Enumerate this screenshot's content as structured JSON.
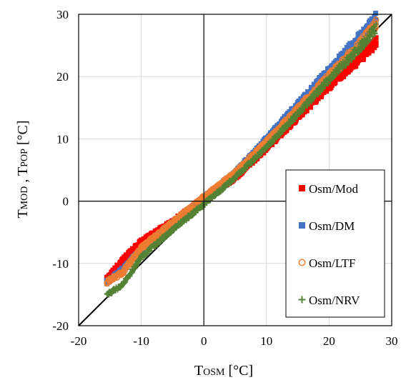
{
  "chart_data": {
    "type": "scatter",
    "title": "",
    "xlabel": {
      "main": "T",
      "sub": "OSM",
      "unit": " [°C]"
    },
    "ylabel": {
      "main1": "T",
      "sub1": "MOD",
      "sep": " ,  ",
      "main2": "T",
      "sub2": "POP",
      "unit": "   [°C]"
    },
    "xlim": [
      -20,
      30
    ],
    "ylim": [
      -20,
      30
    ],
    "xticks": [
      -20,
      -10,
      0,
      10,
      20,
      30
    ],
    "yticks": [
      -20,
      -10,
      0,
      10,
      20,
      30
    ],
    "xtick_labels": [
      "-20",
      "-10",
      "0",
      "10",
      "20",
      "30"
    ],
    "ytick_labels": [
      "-20",
      "-10",
      "0",
      "10",
      "20",
      "30"
    ],
    "grid": true,
    "reference_line": {
      "label": "",
      "from": [
        -20,
        -20
      ],
      "to": [
        30,
        30
      ]
    },
    "legend_position": "bottom-right",
    "series": [
      {
        "name": "Osm/Mod",
        "marker": "square",
        "color": "#ff0000",
        "trend": [
          [
            -15.5,
            -12.5
          ],
          [
            -13,
            -9.5
          ],
          [
            -10,
            -6.5
          ],
          [
            -5,
            -3.3
          ],
          [
            0,
            0.3
          ],
          [
            5,
            3.8
          ],
          [
            10,
            8.5
          ],
          [
            15,
            13.5
          ],
          [
            20,
            18.5
          ],
          [
            25,
            23.0
          ],
          [
            27.5,
            25.5
          ]
        ]
      },
      {
        "name": "Osm/DM",
        "marker": "square",
        "color": "#4472c4",
        "trend": [
          [
            -15.5,
            -13.0
          ],
          [
            -13,
            -11.0
          ],
          [
            -10,
            -7.8
          ],
          [
            -5,
            -3.6
          ],
          [
            0,
            0.5
          ],
          [
            5,
            4.5
          ],
          [
            10,
            10.0
          ],
          [
            15,
            15.5
          ],
          [
            20,
            21.0
          ],
          [
            25,
            26.5
          ],
          [
            27.5,
            29.5
          ]
        ]
      },
      {
        "name": "Osm/LTF",
        "marker": "circle-open",
        "color": "#ed7d31",
        "trend": [
          [
            -15.5,
            -13.0
          ],
          [
            -13,
            -11.5
          ],
          [
            -10,
            -7.5
          ],
          [
            -5,
            -3.4
          ],
          [
            0,
            0.6
          ],
          [
            5,
            4.5
          ],
          [
            10,
            9.5
          ],
          [
            15,
            14.8
          ],
          [
            20,
            20.0
          ],
          [
            25,
            25.3
          ],
          [
            27.5,
            28.5
          ]
        ]
      },
      {
        "name": "Osm/NRV",
        "marker": "plus",
        "color": "#548235",
        "trend": [
          [
            -15.5,
            -15.0
          ],
          [
            -13,
            -13.5
          ],
          [
            -10,
            -9.0
          ],
          [
            -5,
            -4.6
          ],
          [
            0,
            -0.5
          ],
          [
            5,
            3.8
          ],
          [
            10,
            8.7
          ],
          [
            15,
            14.0
          ],
          [
            20,
            19.5
          ],
          [
            25,
            24.8
          ],
          [
            27.5,
            27.8
          ]
        ]
      }
    ]
  }
}
